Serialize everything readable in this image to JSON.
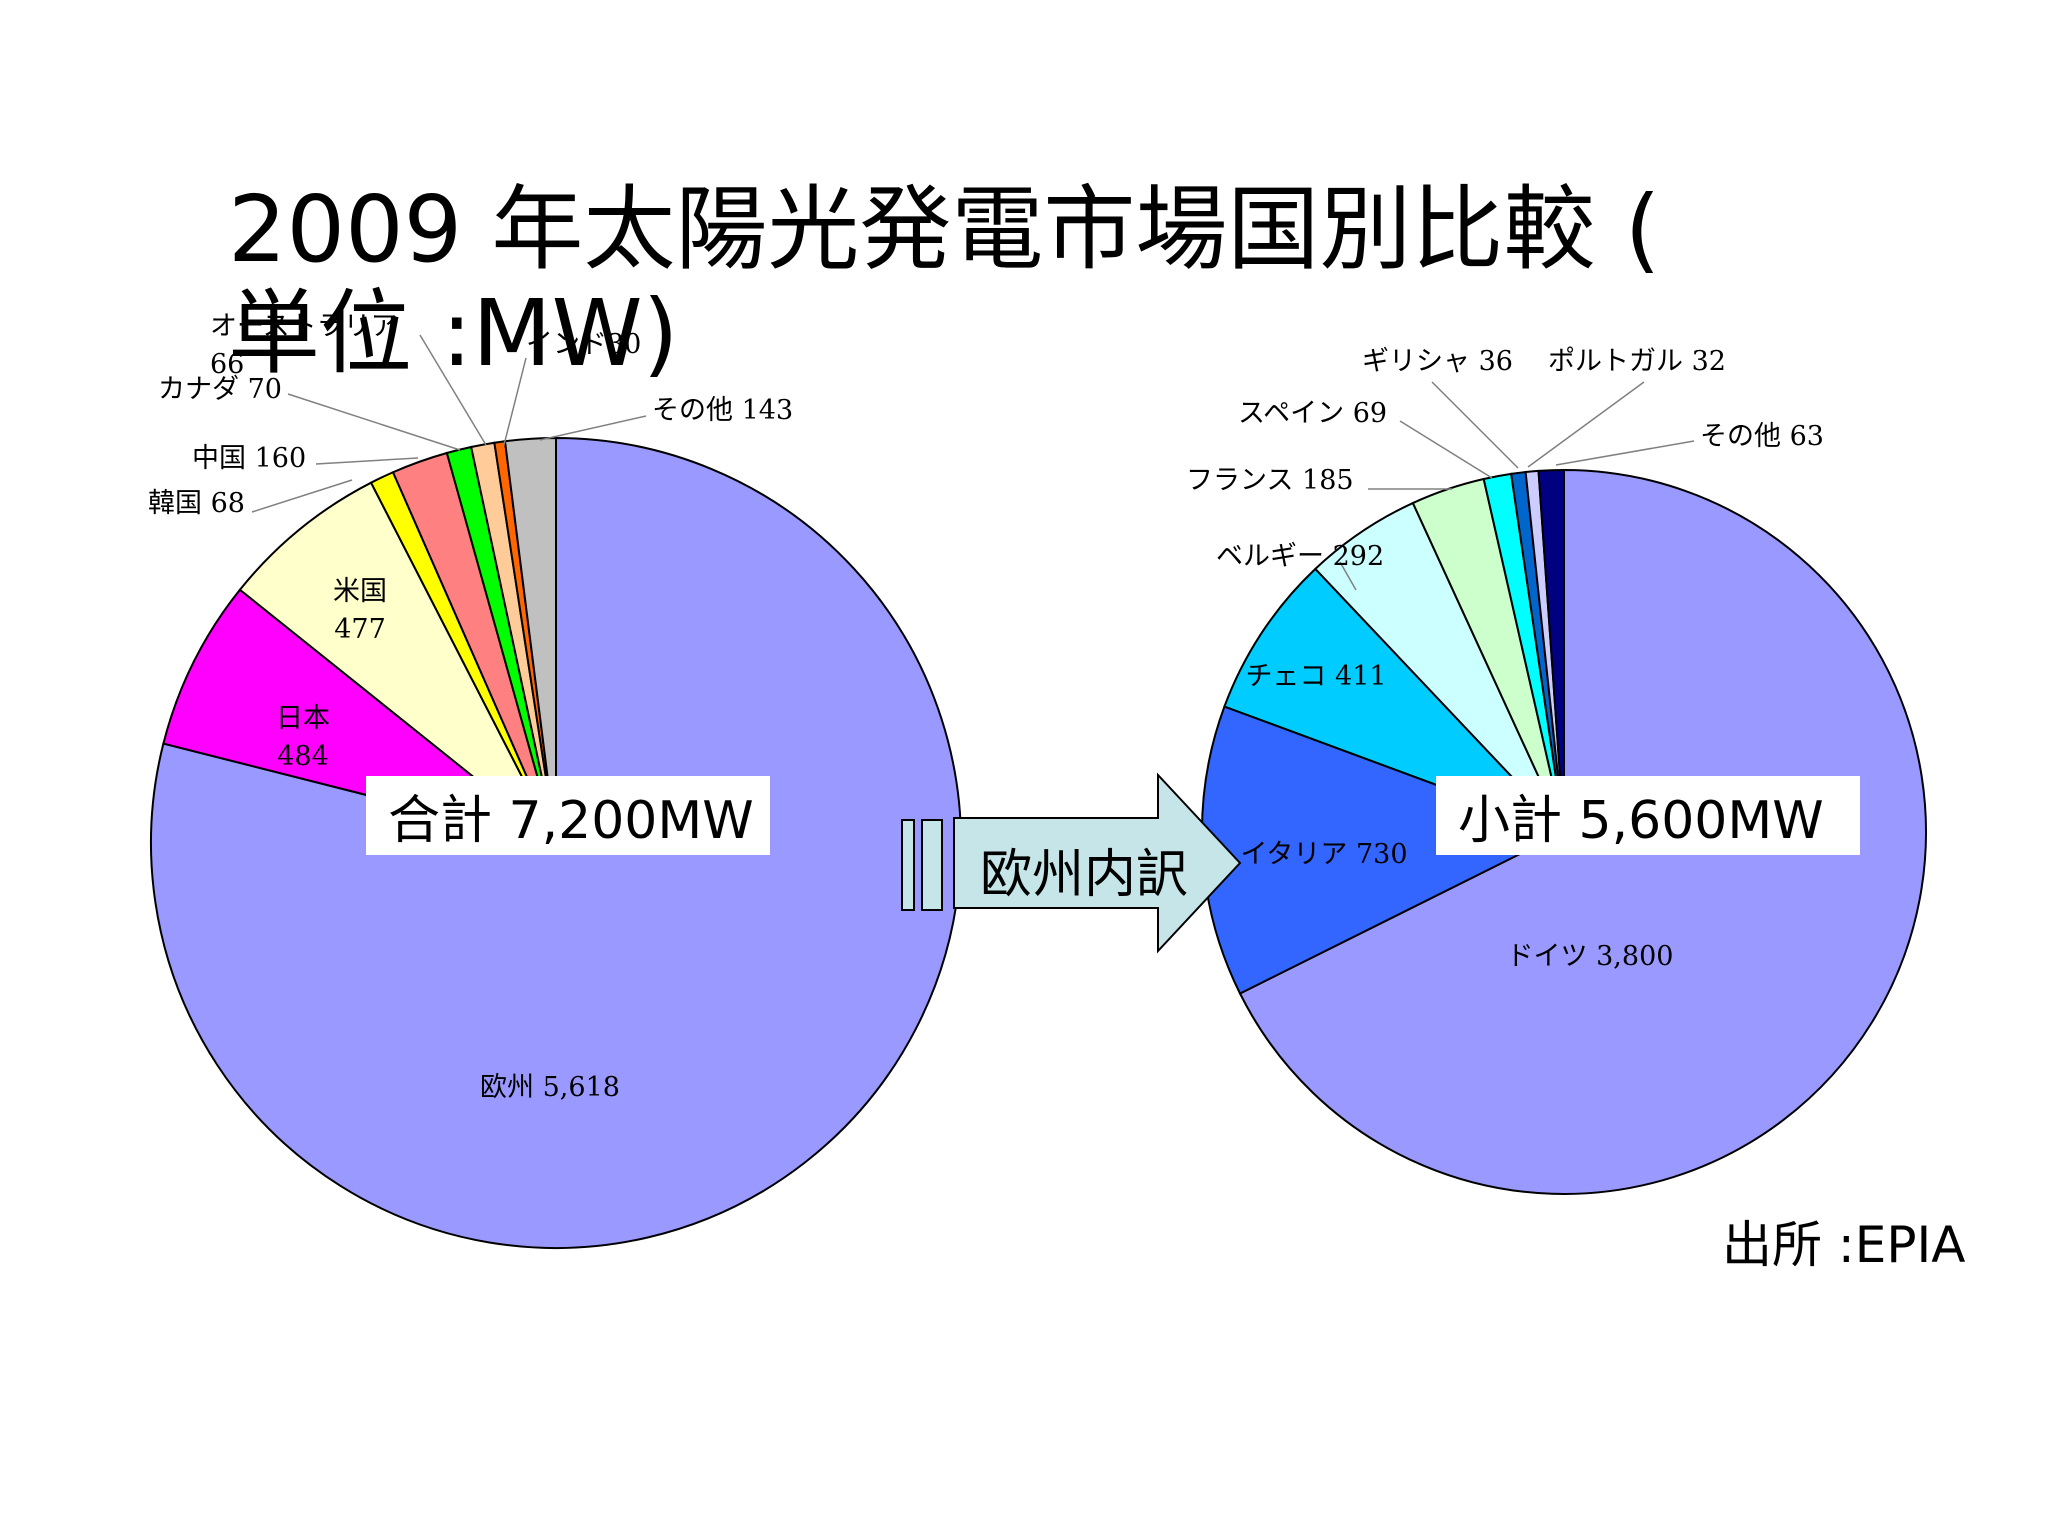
{
  "title": "2009 年太陽光発電市場国別比較 ( 単位 :MW)",
  "source": "出所 :EPIA",
  "total_label": "合計 7,200MW",
  "subtotal_label": "小計 5,600MW",
  "arrow_label": "欧州内訳",
  "chart_data": [
    {
      "type": "pie",
      "name": "",
      "slices": [
        {
          "label": "欧州",
          "value": 5618,
          "display": "欧州 5,618",
          "color": "#9999ff"
        },
        {
          "label": "日本",
          "value": 484,
          "display": "日本\n484",
          "color": "#ff00ff"
        },
        {
          "label": "米国",
          "value": 477,
          "display": "米国\n477",
          "color": "#ffffcc"
        },
        {
          "label": "韓国",
          "value": 68,
          "display": "韓国 68",
          "color": "#ffff00"
        },
        {
          "label": "中国",
          "value": 160,
          "display": "中国 160",
          "color": "#ff8080"
        },
        {
          "label": "カナダ",
          "value": 70,
          "display": "カナダ 70",
          "color": "#00ff00"
        },
        {
          "label": "オーストラリア",
          "value": 66,
          "display": "オーストラリア\n66",
          "color": "#ffcc99"
        },
        {
          "label": "インド",
          "value": 30,
          "display": "インド30",
          "color": "#ff6600"
        },
        {
          "label": "その他",
          "value": 143,
          "display": "その他 143",
          "color": "#c0c0c0"
        }
      ]
    },
    {
      "type": "pie",
      "name": "",
      "slices": [
        {
          "label": "ドイツ",
          "value": 3800,
          "display": "ドイツ 3,800",
          "color": "#9999ff"
        },
        {
          "label": "イタリア",
          "value": 730,
          "display": "イタリア 730",
          "color": "#3366ff"
        },
        {
          "label": "チェコ",
          "value": 411,
          "display": "チェコ 411",
          "color": "#00ccff"
        },
        {
          "label": "ベルギー",
          "value": 292,
          "display": "ベルギー 292",
          "color": "#ccffff"
        },
        {
          "label": "フランス",
          "value": 185,
          "display": "フランス 185",
          "color": "#ccffcc"
        },
        {
          "label": "スペイン",
          "value": 69,
          "display": "スペイン 69",
          "color": "#00ffff"
        },
        {
          "label": "ギリシャ",
          "value": 36,
          "display": "ギリシャ 36",
          "color": "#0066cc"
        },
        {
          "label": "ポルトガル",
          "value": 32,
          "display": "ポルトガル 32",
          "color": "#ccccff"
        },
        {
          "label": "その他",
          "value": 63,
          "display": "その他 63",
          "color": "#000080"
        }
      ]
    }
  ]
}
